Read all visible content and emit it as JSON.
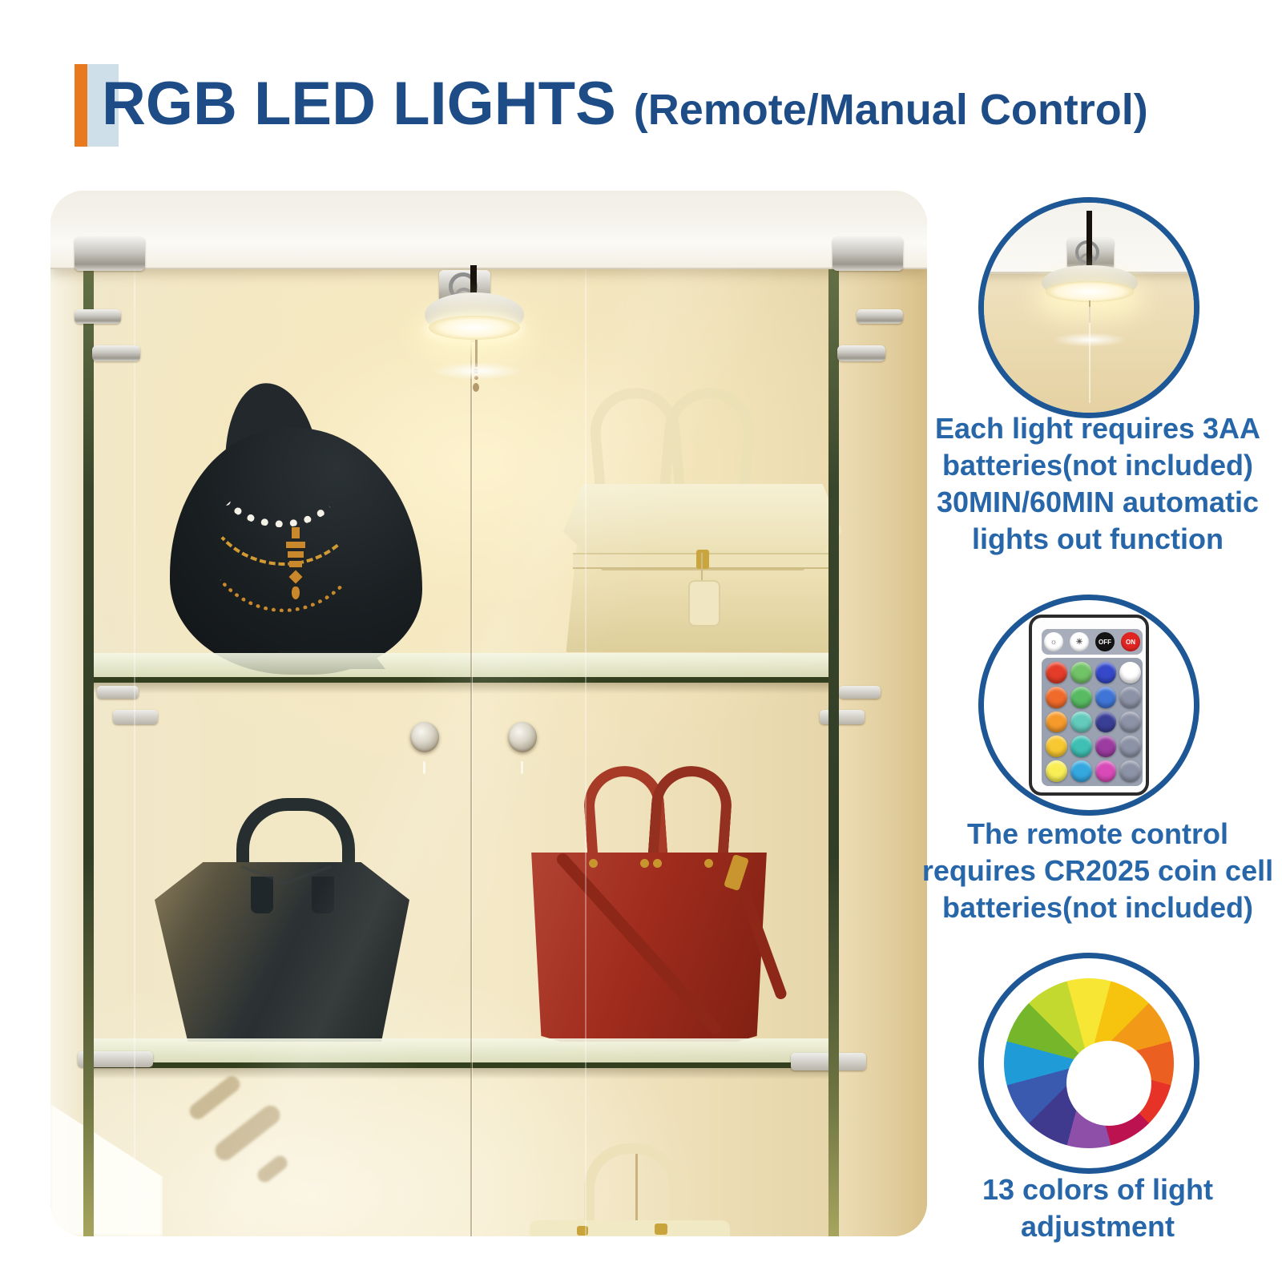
{
  "header": {
    "title": "RGB LED LIGHTS",
    "subtitle": "(Remote/Manual Control)",
    "title_color": "#1d4c86",
    "accent_orange": "#e8791f",
    "accent_lightblue": "#cfdfe9"
  },
  "photo": {
    "items": [
      "led-puck-light",
      "necklace-display-bust",
      "cream-handbag",
      "black-tote-bag",
      "red-handbag",
      "cream-handbag-partial",
      "door-knobs",
      "glass-shelves"
    ]
  },
  "colors": {
    "caption_text": "#2766a8",
    "circle_border": "#1d5795"
  },
  "features": [
    {
      "id": "light-closeup",
      "caption_lines": [
        "Each light requires 3AA",
        "batteries(not included)",
        "30MIN/60MIN automatic",
        "lights out function"
      ]
    },
    {
      "id": "remote-control",
      "caption_lines": [
        "The remote control",
        "requires CR2025 coin cell",
        "batteries(not included)"
      ],
      "remote": {
        "top_buttons": [
          {
            "type": "brightness-down",
            "bg": "#ffffff",
            "label": ""
          },
          {
            "type": "brightness-up",
            "bg": "#ffffff",
            "label": ""
          },
          {
            "type": "off",
            "bg": "#141414",
            "label": "OFF"
          },
          {
            "type": "on",
            "bg": "#e02522",
            "label": "ON"
          }
        ],
        "grid": [
          [
            "#e43c28",
            "#72c267",
            "#3548c9",
            "#ffffff"
          ],
          [
            "#f06a2a",
            "#58bb63",
            "#3f75d6",
            "#8d93a6"
          ],
          [
            "#f59a2b",
            "#63cabc",
            "#3a3f96",
            "#8d93a6"
          ],
          [
            "#f7c831",
            "#3fc0b4",
            "#9c3ba0",
            "#8d93a6"
          ],
          [
            "#f9ef55",
            "#35a8e0",
            "#d84ab8",
            "#8d93a6"
          ]
        ]
      }
    },
    {
      "id": "color-wheel",
      "caption_lines": [
        "13 colors of light",
        "adjustment"
      ],
      "wheel": {
        "segments": [
          "#f7e633",
          "#f6c40f",
          "#f29a18",
          "#eb5f20",
          "#e73227",
          "#bc1350",
          "#8d4fa8",
          "#3f3a8d",
          "#3a5ab0",
          "#1f9cd8",
          "#76b62b",
          "#c4d930"
        ]
      }
    }
  ]
}
